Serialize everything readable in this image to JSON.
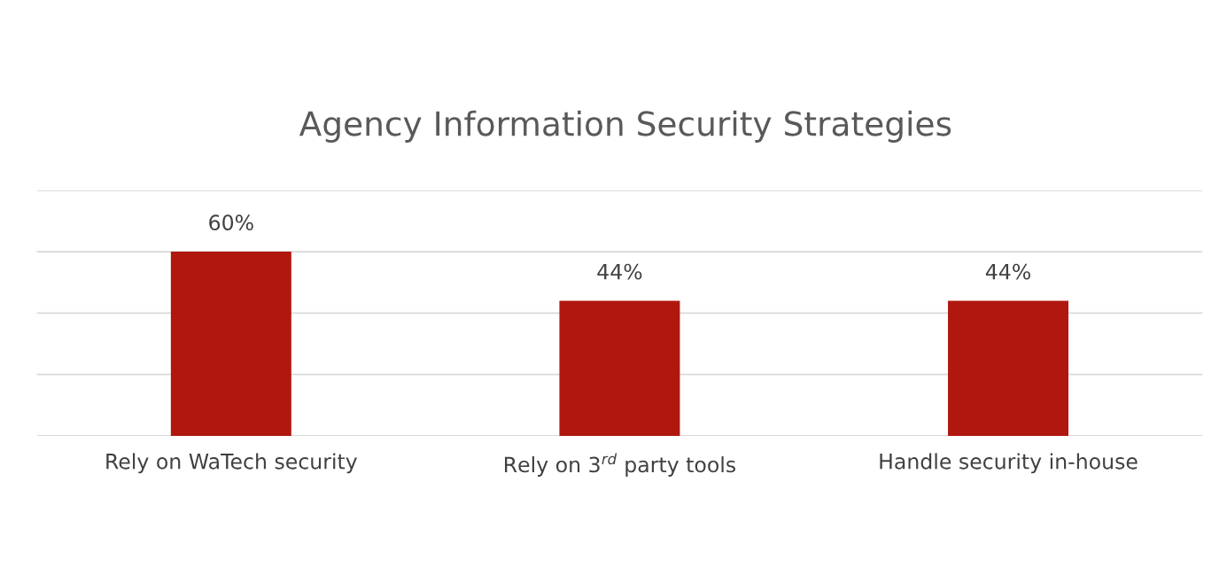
{
  "chart_data": {
    "type": "bar",
    "title": "Agency Information Security Strategies",
    "categories": [
      "Rely on WaTech security",
      "Rely on 3$^{rd}$ party tools",
      "Handle security in-house"
    ],
    "values": [
      60,
      44,
      44
    ],
    "color": "#b0170e",
    "value_labels": [
      "60%",
      "44%",
      "44%"
    ],
    "ylim": [
      0,
      80
    ],
    "yticks": [
      {
        "value": 0,
        "label": null
      },
      {
        "value": 20,
        "label": null
      },
      {
        "value": 40,
        "label": null
      },
      {
        "value": 60,
        "label": null
      },
      {
        "value": 80,
        "label": null
      }
    ],
    "tick_labels": "x",
    "grid": "y"
  }
}
